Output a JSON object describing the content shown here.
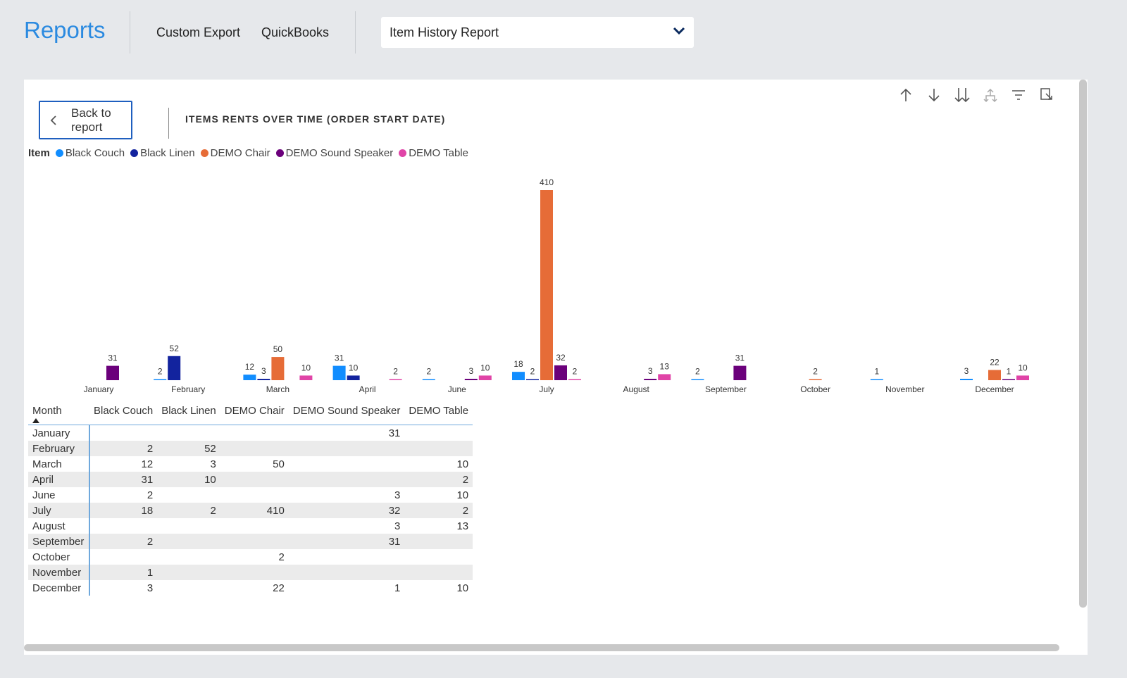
{
  "app": {
    "title": "Reports"
  },
  "nav": {
    "custom_export": "Custom Export",
    "quickbooks": "QuickBooks"
  },
  "report_select": {
    "value": "Item History Report"
  },
  "back_button": {
    "label": "Back to report"
  },
  "chart_title": "ITEMS RENTS OVER TIME (ORDER START DATE)",
  "legend": {
    "title": "Item",
    "items": [
      {
        "label": "Black Couch",
        "color": "#118dff"
      },
      {
        "label": "Black Linen",
        "color": "#12239e"
      },
      {
        "label": "DEMO Chair",
        "color": "#e66c37"
      },
      {
        "label": "DEMO Sound Speaker",
        "color": "#6b007b"
      },
      {
        "label": "DEMO Table",
        "color": "#e044a7"
      }
    ]
  },
  "toolbar_icons": [
    "arrow-up-icon",
    "arrow-down-icon",
    "double-arrow-down-icon",
    "expand-hierarchy-icon",
    "filter-icon",
    "focus-mode-icon"
  ],
  "chart_data": {
    "type": "bar",
    "title": "ITEMS RENTS OVER TIME (ORDER START DATE)",
    "categories": [
      "January",
      "February",
      "March",
      "April",
      "June",
      "July",
      "August",
      "September",
      "October",
      "November",
      "December"
    ],
    "series": [
      {
        "name": "Black Couch",
        "color": "#118dff",
        "values": [
          null,
          2,
          12,
          31,
          2,
          18,
          null,
          2,
          null,
          1,
          3
        ]
      },
      {
        "name": "Black Linen",
        "color": "#12239e",
        "values": [
          null,
          52,
          3,
          10,
          null,
          2,
          null,
          null,
          null,
          null,
          null
        ]
      },
      {
        "name": "DEMO Chair",
        "color": "#e66c37",
        "values": [
          null,
          null,
          50,
          null,
          null,
          410,
          null,
          null,
          2,
          null,
          22
        ]
      },
      {
        "name": "DEMO Sound Speaker",
        "color": "#6b007b",
        "values": [
          31,
          null,
          null,
          null,
          3,
          32,
          3,
          31,
          null,
          null,
          1
        ]
      },
      {
        "name": "DEMO Table",
        "color": "#e044a7",
        "values": [
          null,
          null,
          10,
          2,
          10,
          2,
          13,
          null,
          null,
          null,
          10
        ]
      }
    ],
    "legend": "top-left",
    "grid": false
  },
  "table": {
    "headers": [
      "Month",
      "Black Couch",
      "Black Linen",
      "DEMO Chair",
      "DEMO Sound Speaker",
      "DEMO Table"
    ],
    "rows": [
      [
        "January",
        "",
        "",
        "",
        "31",
        ""
      ],
      [
        "February",
        "2",
        "52",
        "",
        "",
        ""
      ],
      [
        "March",
        "12",
        "3",
        "50",
        "",
        "10"
      ],
      [
        "April",
        "31",
        "10",
        "",
        "",
        "2"
      ],
      [
        "June",
        "2",
        "",
        "",
        "3",
        "10"
      ],
      [
        "July",
        "18",
        "2",
        "410",
        "32",
        "2"
      ],
      [
        "August",
        "",
        "",
        "",
        "3",
        "13"
      ],
      [
        "September",
        "2",
        "",
        "",
        "31",
        ""
      ],
      [
        "October",
        "",
        "",
        "2",
        "",
        ""
      ],
      [
        "November",
        "1",
        "",
        "",
        "",
        ""
      ],
      [
        "December",
        "3",
        "",
        "22",
        "1",
        "10"
      ]
    ]
  }
}
